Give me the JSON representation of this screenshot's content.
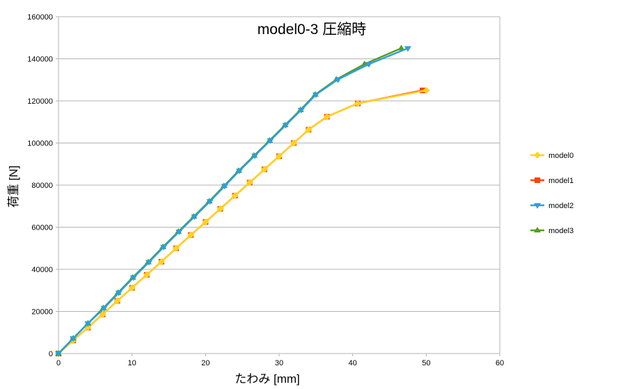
{
  "chart_data": {
    "type": "line",
    "title": "model0-3  圧縮時",
    "xlabel": "たわみ [mm]",
    "ylabel": "荷重 [N]",
    "xlim": [
      0,
      60
    ],
    "ylim": [
      0,
      160000
    ],
    "x_ticks": [
      "0",
      "10",
      "20",
      "30",
      "40",
      "50",
      "60"
    ],
    "y_ticks": [
      "0",
      "20000",
      "40000",
      "60000",
      "80000",
      "100000",
      "120000",
      "140000",
      "160000"
    ],
    "grid": "horizontal",
    "legend_position": "right",
    "series": [
      {
        "name": "model0",
        "color": "#ffd320",
        "marker": "diamond",
        "x": [
          0,
          2,
          4,
          6,
          8,
          10,
          12,
          14,
          16,
          18,
          20,
          22,
          24,
          26,
          28,
          30,
          32,
          34,
          36.5,
          40.7,
          50
        ],
        "y": [
          0,
          6200,
          12300,
          18600,
          25000,
          31200,
          37400,
          43600,
          50000,
          56300,
          62500,
          68700,
          75000,
          81200,
          87500,
          93700,
          100000,
          106300,
          112500,
          118800,
          125000
        ]
      },
      {
        "name": "model1",
        "color": "#ff420e",
        "marker": "square",
        "x": [
          0,
          2,
          4,
          6,
          8,
          10,
          12,
          14,
          16,
          18,
          20,
          22,
          24,
          26,
          28,
          30,
          32,
          34,
          36.5,
          40.7,
          49.5
        ],
        "y": [
          0,
          6200,
          12300,
          18600,
          25000,
          31200,
          37400,
          43600,
          50000,
          56300,
          62500,
          68700,
          75000,
          81200,
          87500,
          93700,
          100000,
          106300,
          112500,
          118800,
          125000
        ]
      },
      {
        "name": "model2",
        "color": "#2a9fe0",
        "marker": "triangle-down",
        "x": [
          0,
          2,
          4,
          6.2,
          8.2,
          10.2,
          12.3,
          14.3,
          16.4,
          18.5,
          20.6,
          22.6,
          24.6,
          26.7,
          28.8,
          30.9,
          33,
          35,
          38,
          42.2,
          47.5
        ],
        "y": [
          0,
          7200,
          14300,
          21600,
          28900,
          36100,
          43400,
          50600,
          57900,
          65100,
          72300,
          79600,
          86800,
          94000,
          101200,
          108500,
          115700,
          123000,
          130200,
          137500,
          145000
        ]
      },
      {
        "name": "model3",
        "color": "#579d1c",
        "marker": "triangle-up",
        "x": [
          0,
          2,
          4,
          6.1,
          8.1,
          10.1,
          12.2,
          14.2,
          16.3,
          18.4,
          20.5,
          22.5,
          24.5,
          26.6,
          28.7,
          30.8,
          32.9,
          34.9,
          37.8,
          41.6,
          46.6
        ],
        "y": [
          0,
          7200,
          14300,
          21600,
          28900,
          36100,
          43400,
          50600,
          57900,
          65100,
          72300,
          79600,
          86800,
          94000,
          101200,
          108500,
          115700,
          123000,
          130200,
          137500,
          145000
        ]
      }
    ]
  }
}
